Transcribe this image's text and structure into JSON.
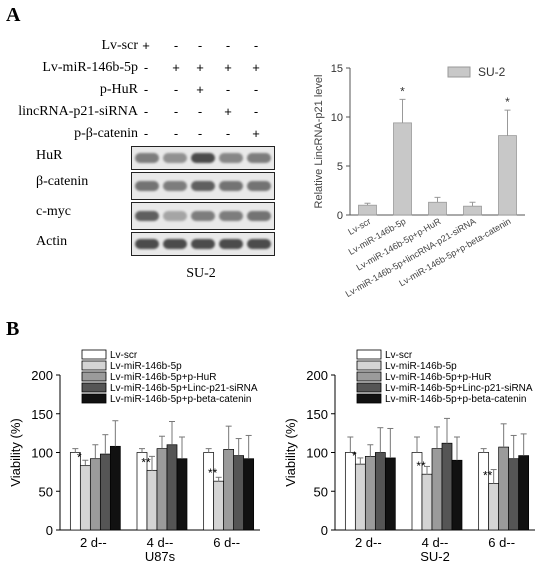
{
  "panel_a": {
    "letter": "A",
    "rows": [
      {
        "label": "Lv-scr",
        "signs": [
          "+",
          "-",
          "-",
          "-",
          "-"
        ]
      },
      {
        "label": "Lv-miR-146b-5p",
        "signs": [
          "-",
          "+",
          "+",
          "+",
          "+"
        ]
      },
      {
        "label": "p-HuR",
        "signs": [
          "-",
          "-",
          "+",
          "-",
          "-"
        ]
      },
      {
        "label": "lincRNA-p21-siRNA",
        "signs": [
          "-",
          "-",
          "-",
          "+",
          "-"
        ]
      },
      {
        "label": "p-β-catenin",
        "signs": [
          "-",
          "-",
          "-",
          "-",
          "+"
        ]
      }
    ],
    "blots": [
      {
        "label": "HuR"
      },
      {
        "label": "β-catenin"
      },
      {
        "label": "c-myc"
      },
      {
        "label": "Actin"
      }
    ],
    "blot_caption": "SU-2"
  },
  "panel_b": {
    "letter": "B"
  },
  "chart_data": [
    {
      "type": "bar",
      "title": "",
      "ylabel": "Relative LincRNA-p21 level",
      "xlabel": "",
      "ylim": [
        0,
        15
      ],
      "yticks": [
        0,
        5,
        10,
        15
      ],
      "legend": [
        "SU-2"
      ],
      "legend_position": "top-right",
      "categories": [
        "Lv-scr",
        "Lv-miR-146b-5p",
        "Lv-miR-146b-5p+p-HuR",
        "Lv-miR-146b-5p+lincRNA-p21-siRNA",
        "Lv-miR-146b-5p+p-beta-catenin"
      ],
      "values": [
        1.0,
        9.4,
        1.3,
        0.9,
        8.1
      ],
      "errors": [
        0.2,
        2.4,
        0.5,
        0.4,
        2.6
      ],
      "annotations": [
        "",
        "*",
        "",
        "",
        "*"
      ],
      "colors": {
        "bar": "#c8c8c8",
        "edge": "#999999"
      }
    },
    {
      "type": "bar",
      "title": "",
      "ylabel": "Viability (%)",
      "xlabel": "U87s",
      "ylim": [
        0,
        200
      ],
      "yticks": [
        0,
        50,
        100,
        150,
        200
      ],
      "legend_position": "top-left",
      "categories": [
        "2 d--",
        "4 d--",
        "6 d--"
      ],
      "series": [
        {
          "name": "Lv-scr",
          "values": [
            100,
            100,
            100
          ],
          "errors": [
            5,
            5,
            5
          ],
          "color": "#ffffff"
        },
        {
          "name": "Lv-miR-146b-5p",
          "values": [
            83,
            77,
            63
          ],
          "errors": [
            7,
            18,
            5
          ],
          "color": "#d4d4d4"
        },
        {
          "name": "Lv-miR-146b-5p+p-HuR",
          "values": [
            92,
            105,
            104
          ],
          "errors": [
            18,
            16,
            30
          ],
          "color": "#9b9b9b"
        },
        {
          "name": "Lv-miR-146b-5p+Linc-p21-siRNA",
          "values": [
            98,
            110,
            96
          ],
          "errors": [
            25,
            30,
            22
          ],
          "color": "#555555"
        },
        {
          "name": "Lv-miR-146b-5p+p-beta-catenin",
          "values": [
            108,
            92,
            92
          ],
          "errors": [
            33,
            28,
            30
          ],
          "color": "#111111"
        }
      ],
      "annotations": [
        {
          "category": 0,
          "series": 1,
          "text": "*"
        },
        {
          "category": 1,
          "series": 1,
          "text": "**"
        },
        {
          "category": 2,
          "series": 1,
          "text": "**"
        }
      ]
    },
    {
      "type": "bar",
      "title": "",
      "ylabel": "Viability (%)",
      "xlabel": "SU-2",
      "ylim": [
        0,
        200
      ],
      "yticks": [
        0,
        50,
        100,
        150,
        200
      ],
      "legend_position": "top-left",
      "categories": [
        "2 d--",
        "4 d--",
        "6 d--"
      ],
      "series": [
        {
          "name": "Lv-scr",
          "values": [
            100,
            100,
            100
          ],
          "errors": [
            20,
            20,
            5
          ],
          "color": "#ffffff"
        },
        {
          "name": "Lv-miR-146b-5p",
          "values": [
            85,
            72,
            60
          ],
          "errors": [
            8,
            10,
            18
          ],
          "color": "#d4d4d4"
        },
        {
          "name": "Lv-miR-146b-5p+p-HuR",
          "values": [
            95,
            105,
            107
          ],
          "errors": [
            15,
            28,
            30
          ],
          "color": "#9b9b9b"
        },
        {
          "name": "Lv-miR-146b-5p+Linc-p21-siRNA",
          "values": [
            100,
            112,
            92
          ],
          "errors": [
            32,
            32,
            30
          ],
          "color": "#555555"
        },
        {
          "name": "Lv-miR-146b-5p+p-beta-catenin",
          "values": [
            93,
            90,
            96
          ],
          "errors": [
            38,
            30,
            28
          ],
          "color": "#111111"
        }
      ],
      "annotations": [
        {
          "category": 0,
          "series": 1,
          "text": "*"
        },
        {
          "category": 1,
          "series": 1,
          "text": "**"
        },
        {
          "category": 2,
          "series": 1,
          "text": "**"
        }
      ]
    }
  ]
}
